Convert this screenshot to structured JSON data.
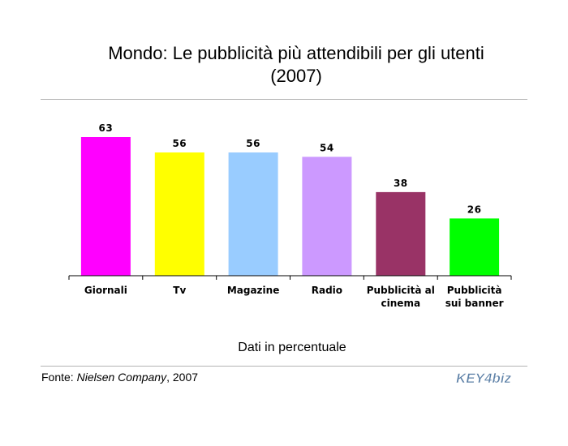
{
  "page": {
    "title_line1": "Mondo: Le pubblicità più attendibili per gli utenti",
    "title_line2": "(2007)",
    "subtitle": "Dati in percentuale",
    "source_prefix": "Fonte: ",
    "source_name": "Nielsen Company",
    "source_suffix": ", 2007",
    "logo_text": "KEY4biz"
  },
  "colors": {
    "bars": [
      "#ff00ff",
      "#ffff00",
      "#99ccff",
      "#cc99ff",
      "#993366",
      "#00ff00"
    ],
    "axis": "#000000",
    "rule": "#b3b3b3"
  },
  "chart_data": {
    "type": "bar",
    "title": "Mondo: Le pubblicità più attendibili per gli utenti (2007)",
    "categories": [
      [
        "Giornali"
      ],
      [
        "Tv"
      ],
      [
        "Magazine"
      ],
      [
        "Radio"
      ],
      [
        "Pubblicità al",
        "cinema"
      ],
      [
        "Pubblicità",
        "sui banner"
      ]
    ],
    "values": [
      63,
      56,
      56,
      54,
      38,
      26
    ],
    "xlabel": "Dati in percentuale",
    "ylabel": "",
    "ylim": [
      0,
      63
    ],
    "grid": false,
    "data_labels": true
  }
}
